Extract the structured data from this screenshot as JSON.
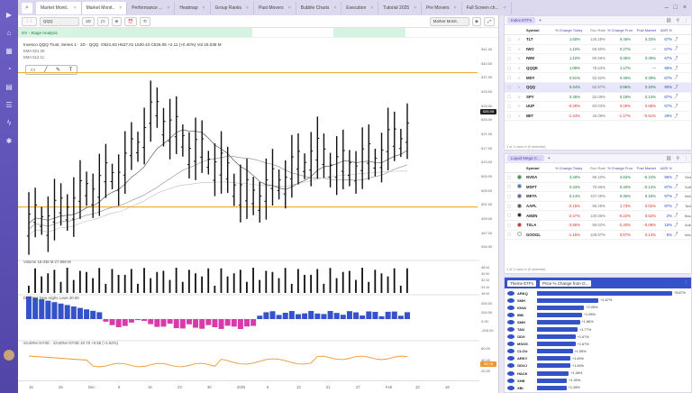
{
  "tabs": [
    {
      "label": "Market Monit..",
      "active": true
    },
    {
      "label": "Market Monit..",
      "active": true
    },
    {
      "label": "Performance ...",
      "active": false
    },
    {
      "label": "Heatmap",
      "active": false
    },
    {
      "label": "Group Ranks",
      "active": false
    },
    {
      "label": "Past Movers",
      "active": false
    },
    {
      "label": "Bubble Charts",
      "active": false
    },
    {
      "label": "Execution",
      "active": false
    },
    {
      "label": "Tutorial 2025",
      "active": false
    },
    {
      "label": "Pre Movers",
      "active": false
    },
    {
      "label": "Full Screen ch...",
      "active": false
    }
  ],
  "chart": {
    "toolbar": {
      "symbol": "QQQ",
      "interval": "1D",
      "layout": "Market Monit.."
    },
    "stage_label": "DV - Stage Analysis",
    "title": "Invesco QQQ Trust, Series 1 · 1D · QQQ",
    "ohlc": "O521.83 H527.01 L520.43 C526.05 +2.11 (+0.40%) Vol 18.038 M",
    "ema1": "EMA 521.25",
    "ema2": "EMA 512.11",
    "price_flag": "526.05",
    "volume_label": "Volume 18.038 M  27.958 M",
    "nh_label": "DV - Net New Highs Lows  40.00",
    "ad_label": "SA40NA NYSE · SA40NA NYSE  40.78  +0.65 (+1.62%)",
    "ad_flag": "40.78",
    "price_axis": [
      "541.00",
      "540.00",
      "537.00",
      "533.00",
      "529.00",
      "525.00",
      "521.00",
      "517.00",
      "513.00",
      "509.00",
      "505.00",
      "501.00",
      "499.00",
      "497.00",
      "494.00"
    ],
    "vol_axis": [
      "48 M",
      "40 M",
      "32 M",
      "24 M",
      "16 M"
    ],
    "nh_axis": [
      "400.00",
      "200.00",
      "0.00",
      "-200.00"
    ],
    "ad_axis": [
      "60.00",
      "40.00",
      "20.00"
    ],
    "x_axis": [
      "18",
      "25",
      "Dec",
      "9",
      "16",
      "23",
      "30",
      "2025",
      "6",
      "13",
      "21",
      "27",
      "Feb",
      "10",
      "18"
    ]
  },
  "chart_data": {
    "type": "ohlc",
    "title": "Invesco QQQ Trust, Series 1 · 1D · QQQ",
    "ylim": [
      493,
      545
    ],
    "x": [
      "Nov 18",
      "Nov 25",
      "Dec 2",
      "Dec 9",
      "Dec 16",
      "Dec 23",
      "Dec 30",
      "Jan 6",
      "Jan 13",
      "Jan 21",
      "Jan 27",
      "Feb 3",
      "Feb 10"
    ],
    "series": [
      {
        "name": "QQQ",
        "values": [
          502,
          505,
          511,
          516,
          531,
          522,
          517,
          508,
          513,
          520,
          516,
          519,
          526.05
        ]
      }
    ],
    "hlines": [
      540.5,
      506.2
    ]
  },
  "index_etfs": {
    "title": "Index ETFs",
    "columns": [
      "Symbol",
      "% Change Today",
      "Run Rate",
      "% Change From Open",
      "Post Market",
      "ADR %"
    ],
    "rows": [
      {
        "sym": "TLT",
        "chg": "1.60%",
        "rr": "126.29%",
        "open": "0.46%",
        "post": "0.33%",
        "adr": "67%",
        "cls": "pos"
      },
      {
        "sym": "IWO",
        "chg": "1.10%",
        "rr": "69.60%",
        "open": "0.27%",
        "post": "—",
        "adr": "67%",
        "cls": "pos"
      },
      {
        "sym": "IWM",
        "chg": "1.10%",
        "rr": "80.56%",
        "open": "0.35%",
        "post": "0.35%",
        "adr": "67%",
        "cls": "pos"
      },
      {
        "sym": "QQQE",
        "chg": "1.09%",
        "rr": "78.63%",
        "open": "1.17%",
        "post": "—",
        "adr": "86%",
        "cls": "pos"
      },
      {
        "sym": "MDY",
        "chg": "0.91%",
        "rr": "82.52%",
        "open": "0.46%",
        "post": "0.39%",
        "adr": "67%",
        "cls": "pos"
      },
      {
        "sym": "QQQ",
        "chg": "0.44%",
        "rr": "62.97%",
        "open": "0.96%",
        "post": "0.10%",
        "adr": "90%",
        "cls": "pos",
        "sel": true
      },
      {
        "sym": "SPY",
        "chg": "0.45%",
        "rr": "62.09%",
        "open": "0.18%",
        "post": "0.14%",
        "adr": "87%",
        "cls": "pos"
      },
      {
        "sym": "UUP",
        "chg": "-0.29%",
        "rr": "83.03%",
        "open": "0.29%",
        "post": "0.05%",
        "adr": "67%",
        "cls": "neg"
      },
      {
        "sym": "IBIT",
        "chg": "-1.44%",
        "rr": "46.09%",
        "open": "-1.17%",
        "post": "-0.61%",
        "adr": "29%",
        "cls": "neg"
      }
    ],
    "footer": "1 of 1 rows in (0 selected)"
  },
  "mega_caps": {
    "title": "Liquid Mega C...",
    "columns": [
      "Symbol",
      "% Change Today",
      "Run Rate",
      "% Change From Open",
      "Post Market",
      "ADR %"
    ],
    "rows": [
      {
        "sym": "NVDA",
        "chg": "3.28%",
        "rr": "96.10%",
        "open": "2.63%",
        "post": "-0.24%",
        "adr": "96%",
        "sector": "Semic",
        "cls": "pos",
        "color": "#2e9e4b"
      },
      {
        "sym": "MSFT",
        "chg": "0.34%",
        "rr": "75.66%",
        "open": "0.40%",
        "post": "-0.14%",
        "adr": "97%",
        "sector": "Softw",
        "cls": "pos",
        "color": "#3a7bd5"
      },
      {
        "sym": "META",
        "chg": "0.14%",
        "rr": "107.49%",
        "open": "0.35%",
        "post": "0.15%",
        "adr": "97%",
        "sector": "Intern",
        "cls": "pos",
        "color": "#4467c4"
      },
      {
        "sym": "AAPL",
        "chg": "-0.15%",
        "rr": "59.25%",
        "open": "1.73%",
        "post": "0.02%",
        "adr": "97%",
        "sector": "Techn",
        "cls": "neg",
        "color": "#555555"
      },
      {
        "sym": "AMZN",
        "chg": "-2.47%",
        "rr": "130.56%",
        "open": "-0.22%",
        "post": "0.62%",
        "adr": "2%",
        "sector": "Broad",
        "cls": "neg",
        "color": "#222222"
      },
      {
        "sym": "TSLA",
        "chg": "-3.65%",
        "rr": "86.62%",
        "open": "-2.40%",
        "post": "-0.08%",
        "adr": "16%",
        "sector": "Autom",
        "cls": "neg",
        "color": "#d93025"
      },
      {
        "sym": "GOOGL",
        "chg": "-1.16%",
        "rr": "108.97%",
        "open": "0.07%",
        "post": "0.14%",
        "adr": "5%",
        "sector": "Intern",
        "cls": "neg",
        "color": "#ffffff"
      }
    ],
    "footer": "1 of 1 rows in (0 selected)"
  },
  "themes": {
    "title": "Theme ETFs",
    "metric": "Price % Change from O...",
    "rows": [
      {
        "sym": "ARKQ",
        "val": 5.87
      },
      {
        "sym": "SMH",
        "val": 2.67
      },
      {
        "sym": "IGNA",
        "val": 2.05
      },
      {
        "sym": "IBB",
        "val": 1.95
      },
      {
        "sym": "SMH",
        "val": 1.86
      },
      {
        "sym": "TAN",
        "val": 1.77
      },
      {
        "sym": "GDX",
        "val": 1.67
      },
      {
        "sym": "MSOS",
        "val": 1.67
      },
      {
        "sym": "CLOU",
        "val": 1.55
      },
      {
        "sym": "ARKY",
        "val": 1.45
      },
      {
        "sym": "GDXJ",
        "val": 1.45
      },
      {
        "sym": "HACK",
        "val": 1.38
      },
      {
        "sym": "XHB",
        "val": 1.3
      },
      {
        "sym": "XBI",
        "val": 1.28
      }
    ],
    "labels": [
      "+5.87%",
      "+2.67%",
      "+2.05%",
      "+1.95%",
      "+1.86%",
      "+1.77%",
      "+1.67%",
      "+1.67%",
      "+1.55%",
      "+1.45%",
      "+1.45%",
      "+1.38%",
      "+1.30%",
      "+1.28%"
    ]
  }
}
